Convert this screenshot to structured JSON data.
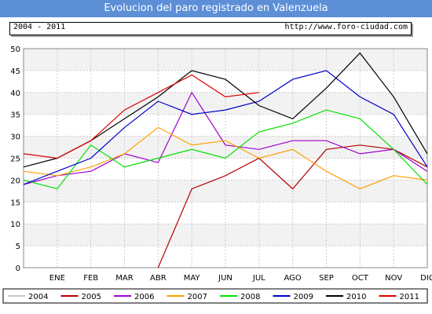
{
  "header": {
    "title": "Evolucion del paro registrado en Valenzuela",
    "period": "2004 - 2011",
    "url": "http://www.foro-ciudad.com"
  },
  "chart_data": {
    "type": "line",
    "title": "Evolucion del paro registrado en Valenzuela",
    "categories": [
      "ENE",
      "FEB",
      "MAR",
      "ABR",
      "MAY",
      "JUN",
      "JUL",
      "AGO",
      "SEP",
      "OCT",
      "NOV",
      "DIC"
    ],
    "ylim": [
      0,
      50
    ],
    "yticks": [
      0,
      5,
      10,
      15,
      20,
      25,
      30,
      35,
      40,
      45,
      50
    ],
    "grid": true,
    "legend_position": "bottom",
    "series": [
      {
        "name": "2004",
        "color": "#c8c8c8",
        "values": [
          null,
          null,
          null,
          null,
          null,
          null,
          null,
          null,
          null,
          null,
          null,
          null
        ]
      },
      {
        "name": "2005",
        "color": "#b40000",
        "values": [
          null,
          null,
          null,
          0,
          18,
          21,
          25,
          18,
          27,
          28,
          27,
          23
        ]
      },
      {
        "name": "2006",
        "color": "#a000d0",
        "values": [
          21,
          22,
          26,
          24,
          40,
          28,
          27,
          29,
          29,
          26,
          27,
          22
        ]
      },
      {
        "name": "2007",
        "color": "#ffa000",
        "values": [
          21,
          23,
          26,
          32,
          28,
          29,
          25,
          27,
          22,
          18,
          21,
          20
        ]
      },
      {
        "name": "2008",
        "color": "#00e000",
        "values": [
          18,
          28,
          23,
          25,
          27,
          25,
          31,
          33,
          36,
          34,
          27,
          19
        ]
      },
      {
        "name": "2009",
        "color": "#0000c8",
        "values": [
          22,
          25,
          32,
          38,
          35,
          36,
          38,
          43,
          45,
          39,
          35,
          23
        ]
      },
      {
        "name": "2010",
        "color": "#000000",
        "values": [
          25,
          29,
          34,
          39,
          45,
          43,
          37,
          34,
          41,
          49,
          39,
          26
        ]
      },
      {
        "name": "2011",
        "color": "#e00000",
        "values": [
          25,
          29,
          36,
          40,
          44,
          39,
          40,
          null,
          null,
          null,
          null,
          null
        ]
      }
    ],
    "lead_in_values": {
      "2006": 19,
      "2007": 22,
      "2008": 20,
      "2009": 19,
      "2010": 23,
      "2011": 26
    }
  }
}
